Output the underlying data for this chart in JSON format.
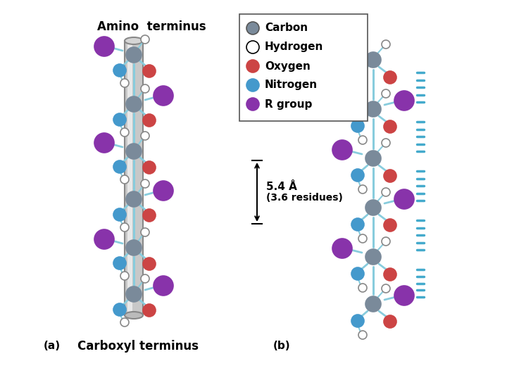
{
  "title": "",
  "background_color": "#ffffff",
  "label_amino": "Amino  terminus",
  "label_carboxyl": "Carboxyl terminus",
  "label_a": "(a)",
  "label_b": "(b)",
  "label_54": "5.4 Å",
  "label_36": "(3.6 residues)",
  "bond_color": "#88ccdd",
  "atom_carbon_color": "#7a8a9a",
  "atom_hydrogen_color": "#ffffff",
  "atom_hydrogen_edge": "#888888",
  "atom_oxygen_color": "#cc4444",
  "atom_nitrogen_color": "#4499cc",
  "atom_rgroup_color": "#8833aa",
  "legend_colors": [
    "#7a8a9a",
    "#ffffff",
    "#cc4444",
    "#4499cc",
    "#8833aa"
  ],
  "legend_edges": [
    "#555555",
    "#000000",
    "#cc4444",
    "#4499cc",
    "#8833aa"
  ],
  "legend_labels": [
    "Carbon",
    "Hydrogen",
    "Oxygen",
    "Nitrogen",
    "R group"
  ]
}
